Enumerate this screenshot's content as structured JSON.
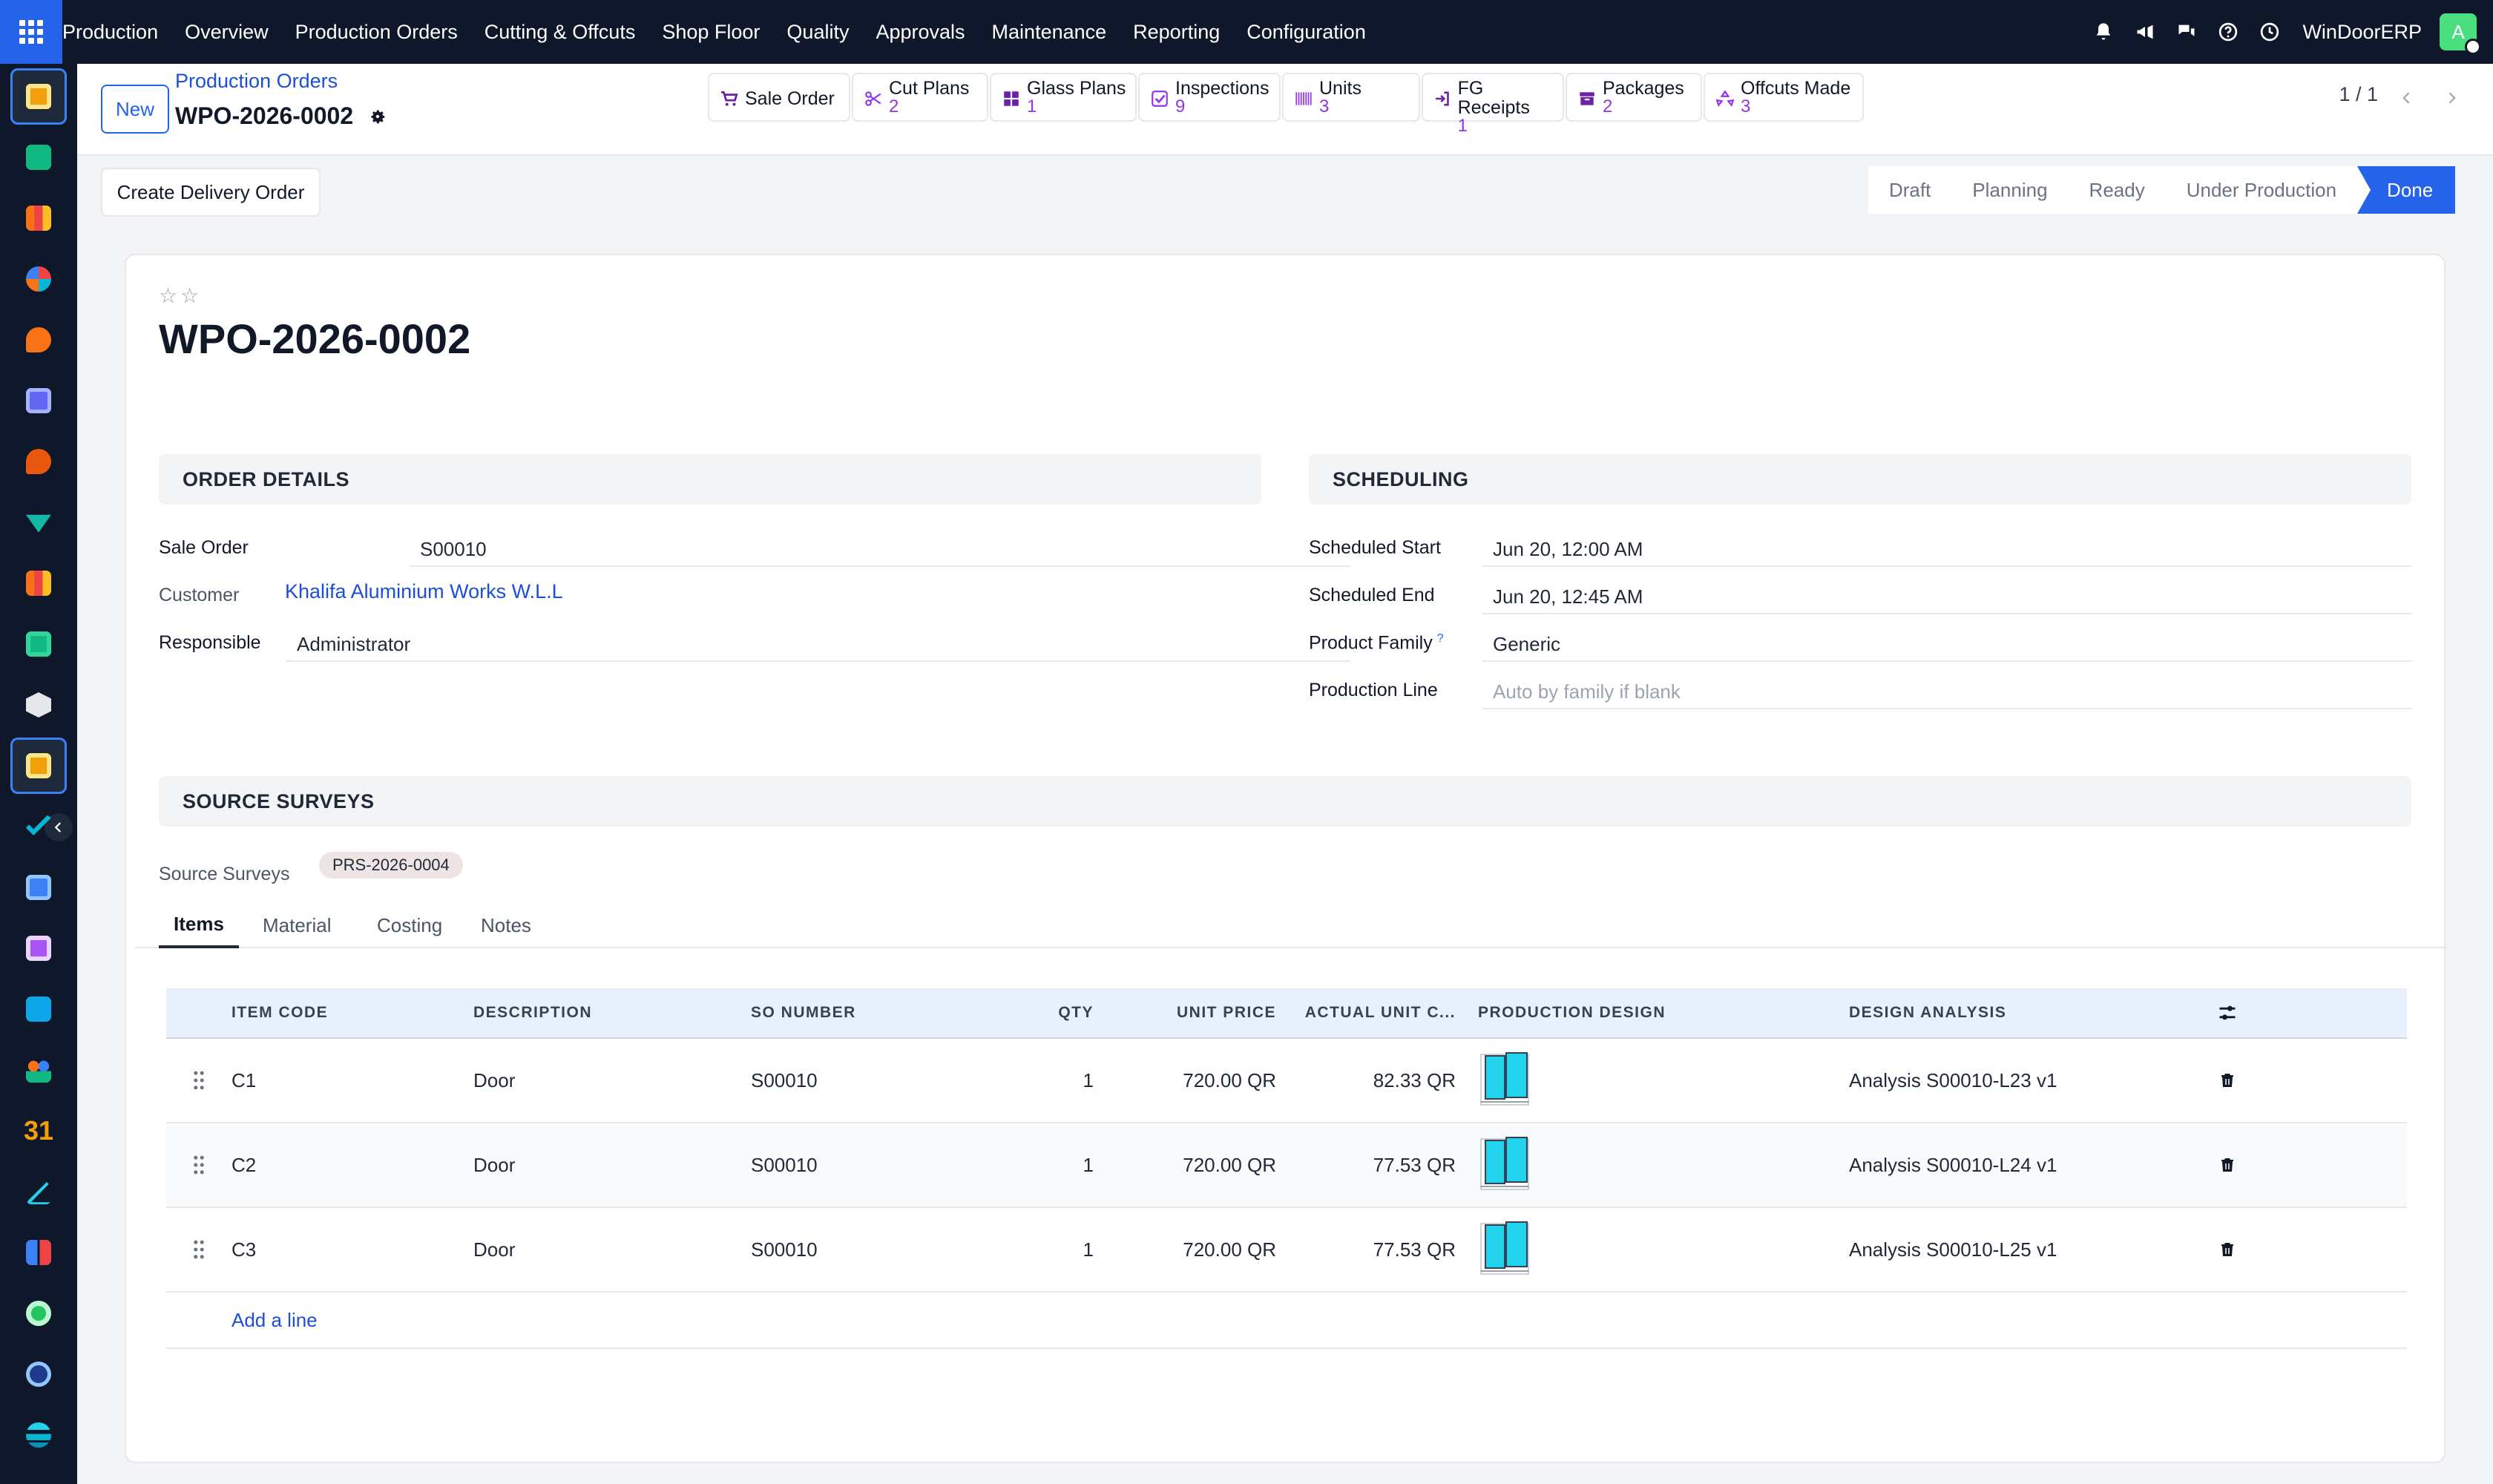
{
  "topbar": {
    "menu": [
      "Production",
      "Overview",
      "Production Orders",
      "Cutting & Offcuts",
      "Shop Floor",
      "Quality",
      "Approvals",
      "Maintenance",
      "Reporting",
      "Configuration"
    ],
    "company": "WinDoorERP",
    "avatar_letter": "A",
    "icons": [
      "bell-icon",
      "megaphone-icon",
      "chat-icon",
      "help-icon",
      "clock-icon"
    ]
  },
  "sidebar": {
    "apps": [
      "production-app-icon",
      "contacts-app-icon",
      "reporting-app-icon",
      "dashboard-app-icon",
      "discuss-app-icon",
      "mail-app-icon",
      "chat-app-icon",
      "project-app-icon",
      "analytics-app-icon",
      "employees-app-icon",
      "inventory-app-icon",
      "production-app-icon-2",
      "quality-app-icon",
      "knowledge-app-icon",
      "apps-app-icon",
      "invoicing-app-icon",
      "team-app-icon",
      "calendar-app-icon",
      "sign-app-icon",
      "spreadsheet-app-icon",
      "whatsapp-app-icon",
      "time-app-icon",
      "website-app-icon"
    ]
  },
  "control": {
    "new_label": "New",
    "breadcrumb_parent": "Production Orders",
    "breadcrumb_current": "WPO-2026-0002",
    "pager": "1 / 1",
    "smart_buttons": [
      {
        "label": "Sale Order",
        "count": ""
      },
      {
        "label": "Cut Plans",
        "count": "2"
      },
      {
        "label": "Glass Plans",
        "count": "1"
      },
      {
        "label": "Inspections",
        "count": "9"
      },
      {
        "label": "Units",
        "count": "3"
      },
      {
        "label": "FG Receipts",
        "count": "1"
      },
      {
        "label": "Packages",
        "count": "2"
      },
      {
        "label": "Offcuts Made",
        "count": "3"
      }
    ]
  },
  "actions": {
    "create_delivery": "Create Delivery Order"
  },
  "status": {
    "stages": [
      "Draft",
      "Planning",
      "Ready",
      "Under Production",
      "Done"
    ],
    "current": "Done"
  },
  "record": {
    "title": "WPO-2026-0002",
    "sections": {
      "order_details": "ORDER DETAILS",
      "scheduling": "SCHEDULING",
      "source_surveys": "SOURCE SURVEYS"
    },
    "order_details": {
      "sale_order_label": "Sale Order",
      "sale_order": "S00010",
      "customer_label": "Customer",
      "customer": "Khalifa Aluminium Works W.L.L",
      "responsible_label": "Responsible",
      "responsible": "Administrator"
    },
    "scheduling": {
      "start_label": "Scheduled Start",
      "start": "Jun 20, 12:00 AM",
      "end_label": "Scheduled End",
      "end": "Jun 20, 12:45 AM",
      "family_label": "Product Family",
      "family_help": "?",
      "family": "Generic",
      "line_label": "Production Line",
      "line_placeholder": "Auto by family if blank"
    },
    "surveys_label": "Source Surveys",
    "survey_tag": "PRS-2026-0004"
  },
  "tabs": [
    "Items",
    "Material",
    "Costing",
    "Notes"
  ],
  "active_tab": "Items",
  "items_table": {
    "columns": [
      "ITEM CODE",
      "DESCRIPTION",
      "SO NUMBER",
      "QTY",
      "UNIT PRICE",
      "ACTUAL UNIT C...",
      "PRODUCTION DESIGN",
      "DESIGN ANALYSIS"
    ],
    "rows": [
      {
        "code": "C1",
        "desc": "Door",
        "so": "S00010",
        "qty": "1",
        "price": "720.00 QR",
        "actual": "82.33 QR",
        "analysis": "Analysis S00010-L23 v1"
      },
      {
        "code": "C2",
        "desc": "Door",
        "so": "S00010",
        "qty": "1",
        "price": "720.00 QR",
        "actual": "77.53 QR",
        "analysis": "Analysis S00010-L24 v1"
      },
      {
        "code": "C3",
        "desc": "Door",
        "so": "S00010",
        "qty": "1",
        "price": "720.00 QR",
        "actual": "77.53 QR",
        "analysis": "Analysis S00010-L25 v1"
      }
    ],
    "add_line": "Add a line"
  },
  "colors": {
    "topbar": "#0f172a",
    "accent": "#2563eb",
    "count": "#9333ea",
    "design_fill": "#22d3ee"
  }
}
